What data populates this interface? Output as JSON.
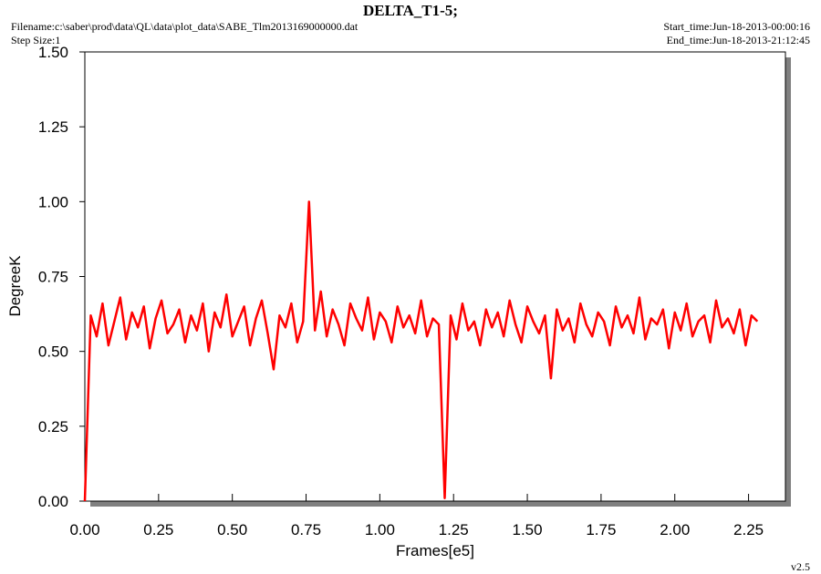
{
  "chart_data": {
    "type": "line",
    "title": "DELTA_T1-5;",
    "filename": "Filename:c:\\saber\\prod\\data\\QL\\data\\plot_data\\SABE_Tlm2013169000000.dat",
    "step_size": "Step Size:1",
    "start_time": "Start_time:Jun-18-2013-00:00:16",
    "end_time": "End_time:Jun-18-2013-21:12:45",
    "version": "v2.5",
    "x_label": "Frames[e5]",
    "y_label": "DegreeK",
    "xlim": [
      0,
      2.375
    ],
    "ylim": [
      0,
      1.5
    ],
    "xticks": [
      {
        "value": 0,
        "label": "0.00"
      },
      {
        "value": 0.25,
        "label": "0.25"
      },
      {
        "value": 0.5,
        "label": "0.50"
      },
      {
        "value": 0.75,
        "label": "0.75"
      },
      {
        "value": 1,
        "label": "1.00"
      },
      {
        "value": 1.25,
        "label": "1.25"
      },
      {
        "value": 1.5,
        "label": "1.50"
      },
      {
        "value": 1.75,
        "label": "1.75"
      },
      {
        "value": 2,
        "label": "2.00"
      },
      {
        "value": 2.25,
        "label": "2.25"
      }
    ],
    "yticks": [
      {
        "value": 0,
        "label": "0.00"
      },
      {
        "value": 0.25,
        "label": "0.25"
      },
      {
        "value": 0.5,
        "label": "0.50"
      },
      {
        "value": 0.75,
        "label": "0.75"
      },
      {
        "value": 1,
        "label": "1.00"
      },
      {
        "value": 1.25,
        "label": "1.25"
      },
      {
        "value": 1.5,
        "label": "1.50"
      }
    ],
    "color": "#ff0000",
    "x": [
      0,
      0.02,
      0.04,
      0.06,
      0.08,
      0.1,
      0.12,
      0.14,
      0.16,
      0.18,
      0.2,
      0.22,
      0.24,
      0.26,
      0.28,
      0.3,
      0.32,
      0.34,
      0.36,
      0.38,
      0.4,
      0.42,
      0.44,
      0.46,
      0.48,
      0.5,
      0.52,
      0.54,
      0.56,
      0.58,
      0.6,
      0.62,
      0.64,
      0.66,
      0.68,
      0.7,
      0.72,
      0.74,
      0.76,
      0.78,
      0.8,
      0.82,
      0.84,
      0.86,
      0.88,
      0.9,
      0.92,
      0.94,
      0.96,
      0.98,
      1,
      1.02,
      1.04,
      1.06,
      1.08,
      1.1,
      1.12,
      1.14,
      1.16,
      1.18,
      1.2,
      1.22,
      1.24,
      1.26,
      1.28,
      1.3,
      1.32,
      1.34,
      1.36,
      1.38,
      1.4,
      1.42,
      1.44,
      1.46,
      1.48,
      1.5,
      1.52,
      1.54,
      1.56,
      1.58,
      1.6,
      1.62,
      1.64,
      1.66,
      1.68,
      1.7,
      1.72,
      1.74,
      1.76,
      1.78,
      1.8,
      1.82,
      1.84,
      1.86,
      1.88,
      1.9,
      1.92,
      1.94,
      1.96,
      1.98,
      2,
      2.02,
      2.04,
      2.06,
      2.08,
      2.1,
      2.12,
      2.14,
      2.16,
      2.18,
      2.2,
      2.22,
      2.24,
      2.26,
      2.28
    ],
    "values": [
      0,
      0.62,
      0.55,
      0.66,
      0.52,
      0.6,
      0.68,
      0.54,
      0.63,
      0.58,
      0.65,
      0.51,
      0.61,
      0.67,
      0.56,
      0.59,
      0.64,
      0.53,
      0.62,
      0.57,
      0.66,
      0.5,
      0.63,
      0.58,
      0.69,
      0.55,
      0.6,
      0.65,
      0.52,
      0.61,
      0.67,
      0.56,
      0.44,
      0.62,
      0.58,
      0.66,
      0.53,
      0.6,
      1.0,
      0.57,
      0.7,
      0.55,
      0.64,
      0.59,
      0.52,
      0.66,
      0.61,
      0.57,
      0.68,
      0.54,
      0.63,
      0.6,
      0.53,
      0.65,
      0.58,
      0.62,
      0.56,
      0.67,
      0.55,
      0.61,
      0.59,
      0.01,
      0.62,
      0.54,
      0.66,
      0.57,
      0.6,
      0.52,
      0.64,
      0.58,
      0.63,
      0.55,
      0.67,
      0.59,
      0.53,
      0.65,
      0.6,
      0.56,
      0.62,
      0.41,
      0.64,
      0.57,
      0.61,
      0.53,
      0.66,
      0.59,
      0.55,
      0.63,
      0.6,
      0.52,
      0.65,
      0.58,
      0.62,
      0.56,
      0.68,
      0.54,
      0.61,
      0.59,
      0.64,
      0.51,
      0.63,
      0.57,
      0.66,
      0.55,
      0.6,
      0.62,
      0.53,
      0.67,
      0.58,
      0.61,
      0.56,
      0.64,
      0.52,
      0.62,
      0.6
    ]
  }
}
